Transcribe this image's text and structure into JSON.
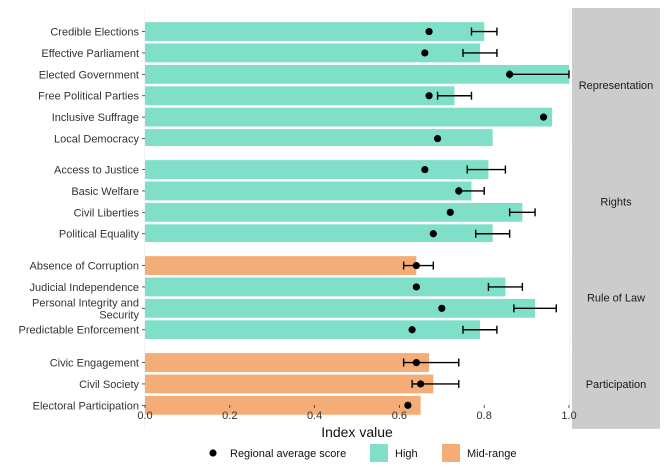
{
  "chart_data": {
    "type": "bar",
    "orientation": "horizontal",
    "xlabel": "Index value",
    "ylabel": "",
    "xlim": [
      0,
      1.0
    ],
    "x_ticks": [
      "0.0",
      "0.2",
      "0.4",
      "0.6",
      "0.8",
      "1.0"
    ],
    "grid": true,
    "legend_position": "bottom",
    "colors": {
      "High": "#7fdfc8",
      "Mid-range": "#f5ad77",
      "strip": "#cccccc",
      "point": "#000000"
    },
    "legend": [
      {
        "label": "Regional average score",
        "kind": "point"
      },
      {
        "label": "High",
        "kind": "fill",
        "key": "High"
      },
      {
        "label": "Mid-range",
        "kind": "fill",
        "key": "Mid-range"
      }
    ],
    "panels": [
      {
        "name": "Representation",
        "items": [
          {
            "label": "Credible Elections",
            "value": 0.8,
            "category": "High",
            "avg": 0.67,
            "err": [
              0.77,
              0.83
            ]
          },
          {
            "label": "Effective Parliament",
            "value": 0.79,
            "category": "High",
            "avg": 0.66,
            "err": [
              0.75,
              0.83
            ]
          },
          {
            "label": "Elected Government",
            "value": 1.0,
            "category": "High",
            "avg": 0.86,
            "err": [
              0.86,
              1.0
            ]
          },
          {
            "label": "Free Political Parties",
            "value": 0.73,
            "category": "High",
            "avg": 0.67,
            "err": [
              0.69,
              0.77
            ]
          },
          {
            "label": "Inclusive Suffrage",
            "value": 0.96,
            "category": "High",
            "avg": 0.94,
            "err": null
          },
          {
            "label": "Local Democracy",
            "value": 0.82,
            "category": "High",
            "avg": 0.69,
            "err": null
          }
        ]
      },
      {
        "name": "Rights",
        "items": [
          {
            "label": "Access to Justice",
            "value": 0.81,
            "category": "High",
            "avg": 0.66,
            "err": [
              0.76,
              0.85
            ]
          },
          {
            "label": "Basic Welfare",
            "value": 0.77,
            "category": "High",
            "avg": 0.74,
            "err": [
              0.74,
              0.8
            ]
          },
          {
            "label": "Civil Liberties",
            "value": 0.89,
            "category": "High",
            "avg": 0.72,
            "err": [
              0.86,
              0.92
            ]
          },
          {
            "label": "Political Equality",
            "value": 0.82,
            "category": "High",
            "avg": 0.68,
            "err": [
              0.78,
              0.86
            ]
          }
        ]
      },
      {
        "name": "Rule of Law",
        "items": [
          {
            "label": "Absence of Corruption",
            "value": 0.64,
            "category": "Mid-range",
            "avg": 0.64,
            "err": [
              0.61,
              0.68
            ]
          },
          {
            "label": "Judicial Independence",
            "value": 0.85,
            "category": "High",
            "avg": 0.64,
            "err": [
              0.81,
              0.89
            ]
          },
          {
            "label": "Personal Integrity and Security",
            "label_lines": [
              "Personal Integrity and",
              "Security"
            ],
            "value": 0.92,
            "category": "High",
            "avg": 0.7,
            "err": [
              0.87,
              0.97
            ]
          },
          {
            "label": "Predictable Enforcement",
            "value": 0.79,
            "category": "High",
            "avg": 0.63,
            "err": [
              0.75,
              0.83
            ]
          }
        ]
      },
      {
        "name": "Participation",
        "items": [
          {
            "label": "Civic Engagement",
            "value": 0.67,
            "category": "Mid-range",
            "avg": 0.64,
            "err": [
              0.61,
              0.74
            ]
          },
          {
            "label": "Civil Society",
            "value": 0.68,
            "category": "Mid-range",
            "avg": 0.65,
            "err": [
              0.63,
              0.74
            ]
          },
          {
            "label": "Electoral Participation",
            "value": 0.65,
            "category": "Mid-range",
            "avg": 0.62,
            "err": null
          }
        ]
      }
    ]
  }
}
